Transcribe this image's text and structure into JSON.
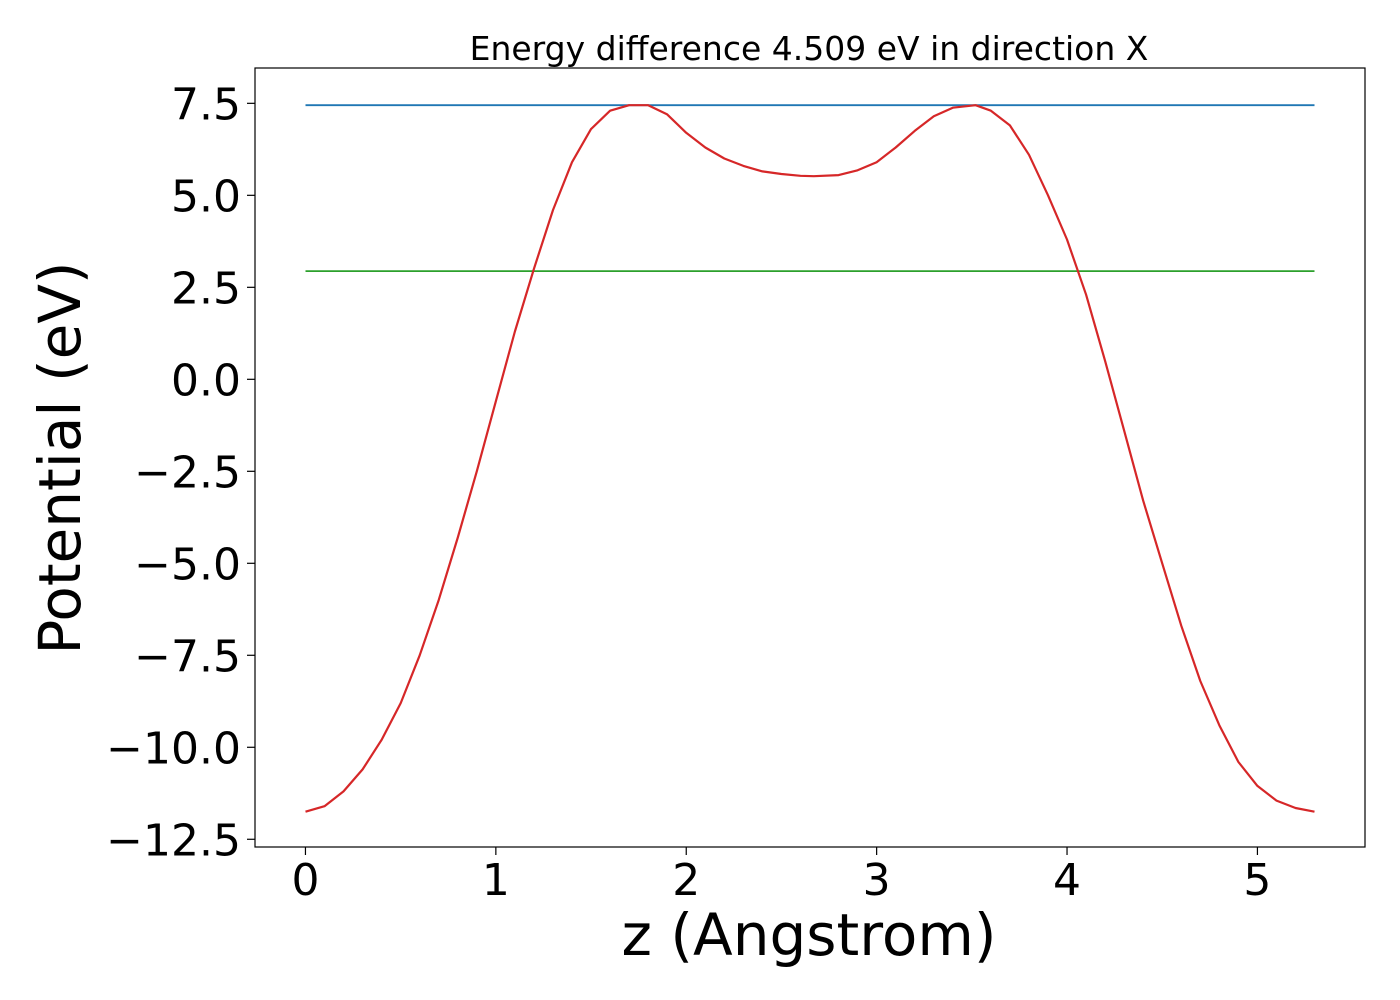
{
  "chart_data": {
    "type": "line",
    "title": "Energy difference 4.509 eV in direction X",
    "xlabel": "z (Angstrom)",
    "ylabel": "Potential (eV)",
    "xlim": [
      -0.265,
      5.565
    ],
    "ylim": [
      -12.71,
      8.46
    ],
    "x_ticks": [
      0,
      1,
      2,
      3,
      4,
      5
    ],
    "x_tick_labels": [
      "0",
      "1",
      "2",
      "3",
      "4",
      "5"
    ],
    "y_ticks": [
      7.5,
      5.0,
      2.5,
      0.0,
      -2.5,
      -5.0,
      -7.5,
      -10.0,
      -12.5
    ],
    "y_tick_labels": [
      "7.5",
      "5.0",
      "2.5",
      "0.0",
      "−2.5",
      "−5.0",
      "−7.5",
      "−10.0",
      "−12.5"
    ],
    "grid": false,
    "legend": "none",
    "series": [
      {
        "color": "#1f77b4",
        "style": "hline",
        "x": [
          0,
          5.3
        ],
        "y": [
          7.45,
          7.45
        ]
      },
      {
        "color": "#2ca02c",
        "style": "hline",
        "x": [
          0,
          5.3
        ],
        "y": [
          2.94,
          2.94
        ]
      },
      {
        "color": "#d62728",
        "style": "curve",
        "x": [
          0.0,
          0.1,
          0.2,
          0.3,
          0.4,
          0.5,
          0.6,
          0.7,
          0.8,
          0.9,
          1.0,
          1.1,
          1.2,
          1.3,
          1.4,
          1.5,
          1.6,
          1.7,
          1.8,
          1.9,
          2.0,
          2.1,
          2.2,
          2.3,
          2.4,
          2.5,
          2.6,
          2.67,
          2.8,
          2.9,
          3.0,
          3.1,
          3.2,
          3.3,
          3.4,
          3.52,
          3.6,
          3.7,
          3.8,
          3.9,
          4.0,
          4.1,
          4.2,
          4.3,
          4.4,
          4.5,
          4.6,
          4.7,
          4.8,
          4.9,
          5.0,
          5.1,
          5.2,
          5.3
        ],
        "y": [
          -11.75,
          -11.6,
          -11.2,
          -10.6,
          -9.8,
          -8.8,
          -7.5,
          -6.0,
          -4.3,
          -2.5,
          -0.6,
          1.3,
          3.0,
          4.6,
          5.9,
          6.8,
          7.3,
          7.45,
          7.45,
          7.2,
          6.7,
          6.3,
          6.0,
          5.8,
          5.65,
          5.58,
          5.53,
          5.52,
          5.55,
          5.68,
          5.9,
          6.3,
          6.75,
          7.15,
          7.38,
          7.45,
          7.3,
          6.9,
          6.1,
          5.0,
          3.8,
          2.3,
          0.5,
          -1.4,
          -3.3,
          -5.0,
          -6.7,
          -8.2,
          -9.4,
          -10.4,
          -11.05,
          -11.45,
          -11.65,
          -11.75
        ]
      }
    ]
  }
}
